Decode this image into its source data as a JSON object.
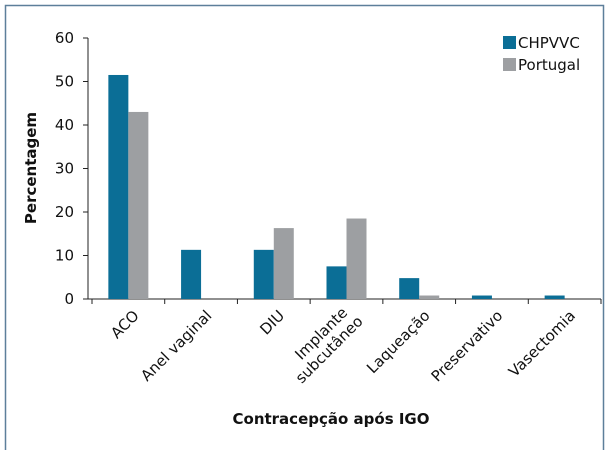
{
  "chart_data": {
    "type": "bar",
    "x_label": "Contracepção após IGO",
    "y_label": "Percentagem",
    "categories": [
      "ACO",
      "Anel vaginal",
      "DIU",
      "Implante subcutâneo",
      "Laqueação",
      "Preservativo",
      "Vasectomia"
    ],
    "series": [
      {
        "name": "CHPVVC",
        "color": "#0b6e96",
        "values": [
          51.5,
          11.3,
          11.3,
          7.5,
          4.8,
          0.8,
          0.8
        ]
      },
      {
        "name": "Portugal",
        "color": "#9d9fa2",
        "values": [
          43,
          0,
          16.3,
          18.5,
          0.8,
          0,
          0
        ]
      }
    ],
    "ylim": [
      0,
      60
    ],
    "yticks": [
      0,
      10,
      20,
      30,
      40,
      50,
      60
    ],
    "legend": "upper right"
  }
}
